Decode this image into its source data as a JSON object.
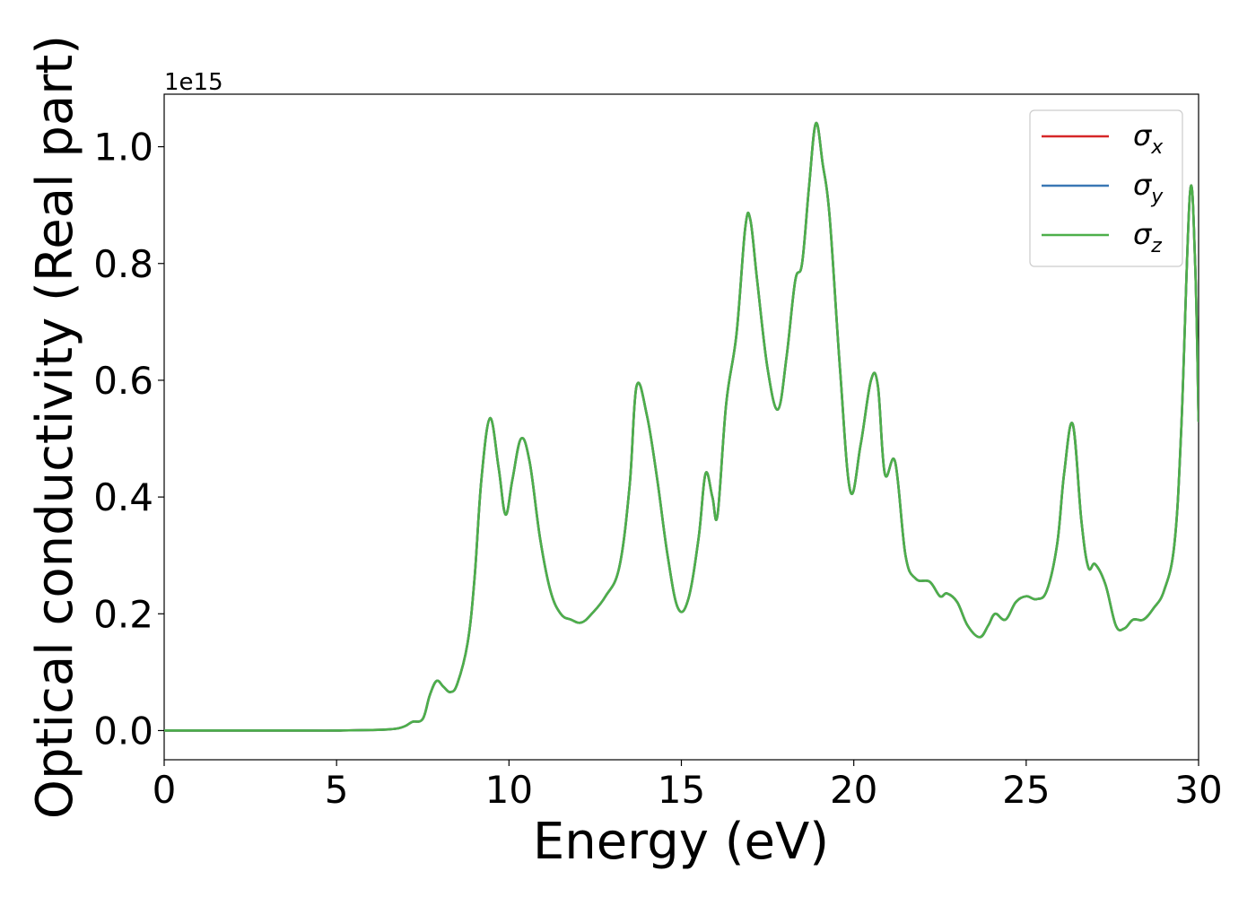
{
  "chart_data": {
    "type": "line",
    "title": "",
    "xlabel": "Energy (eV)",
    "ylabel": "Optical conductivity (Real part)",
    "offset_label": "1e15",
    "xlim": [
      0,
      30
    ],
    "ylim": [
      -0.05,
      1.09
    ],
    "y_scale_factor": 1000000000000000.0,
    "xticks": [
      0,
      5,
      10,
      15,
      20,
      25,
      30
    ],
    "xtick_labels": [
      "0",
      "5",
      "10",
      "15",
      "20",
      "25",
      "30"
    ],
    "yticks": [
      0.0,
      0.2,
      0.4,
      0.6,
      0.8,
      1.0
    ],
    "ytick_labels": [
      "0.0",
      "0.2",
      "0.4",
      "0.6",
      "0.8",
      "1.0"
    ],
    "grid": false,
    "legend_position": "top-right",
    "x": [
      0,
      2,
      4,
      5,
      6,
      6.5,
      6.8,
      7.0,
      7.2,
      7.5,
      7.7,
      7.9,
      8.1,
      8.3,
      8.5,
      8.8,
      9.0,
      9.2,
      9.45,
      9.7,
      9.9,
      10.1,
      10.35,
      10.6,
      10.9,
      11.2,
      11.5,
      11.8,
      12.1,
      12.4,
      12.8,
      13.2,
      13.5,
      13.7,
      14.0,
      14.3,
      14.6,
      14.9,
      15.2,
      15.5,
      15.7,
      15.9,
      16.05,
      16.3,
      16.6,
      16.85,
      17.0,
      17.2,
      17.5,
      17.8,
      18.05,
      18.3,
      18.5,
      18.7,
      18.9,
      19.1,
      19.3,
      19.6,
      19.9,
      20.2,
      20.5,
      20.7,
      20.9,
      21.2,
      21.5,
      21.8,
      22.2,
      22.5,
      22.7,
      23.0,
      23.3,
      23.65,
      23.9,
      24.1,
      24.4,
      24.7,
      25.0,
      25.3,
      25.6,
      25.9,
      26.1,
      26.35,
      26.6,
      26.8,
      27.0,
      27.3,
      27.6,
      27.85,
      28.1,
      28.4,
      28.7,
      29.0,
      29.3,
      29.5,
      29.75,
      29.9,
      30.0
    ],
    "series": [
      {
        "name": "σx",
        "color": "#d62728",
        "values": [
          0.0,
          0.0,
          0.0,
          0.0,
          0.001,
          0.002,
          0.004,
          0.008,
          0.015,
          0.02,
          0.06,
          0.085,
          0.075,
          0.066,
          0.08,
          0.15,
          0.26,
          0.43,
          0.535,
          0.45,
          0.37,
          0.43,
          0.5,
          0.46,
          0.33,
          0.24,
          0.2,
          0.19,
          0.185,
          0.2,
          0.23,
          0.28,
          0.42,
          0.59,
          0.54,
          0.43,
          0.3,
          0.21,
          0.225,
          0.33,
          0.44,
          0.4,
          0.37,
          0.56,
          0.68,
          0.86,
          0.875,
          0.77,
          0.62,
          0.55,
          0.64,
          0.77,
          0.8,
          0.93,
          1.04,
          0.97,
          0.88,
          0.62,
          0.41,
          0.49,
          0.6,
          0.59,
          0.44,
          0.46,
          0.3,
          0.26,
          0.255,
          0.23,
          0.235,
          0.22,
          0.18,
          0.16,
          0.18,
          0.2,
          0.19,
          0.22,
          0.23,
          0.225,
          0.24,
          0.32,
          0.44,
          0.525,
          0.36,
          0.28,
          0.285,
          0.25,
          0.18,
          0.175,
          0.19,
          0.19,
          0.21,
          0.24,
          0.32,
          0.52,
          0.92,
          0.8,
          0.53
        ]
      },
      {
        "name": "σy",
        "color": "#3a78b5",
        "values": [
          0.0,
          0.0,
          0.0,
          0.0,
          0.001,
          0.002,
          0.004,
          0.008,
          0.015,
          0.02,
          0.06,
          0.085,
          0.075,
          0.066,
          0.08,
          0.15,
          0.26,
          0.43,
          0.535,
          0.45,
          0.37,
          0.43,
          0.5,
          0.46,
          0.33,
          0.24,
          0.2,
          0.19,
          0.185,
          0.2,
          0.23,
          0.28,
          0.42,
          0.59,
          0.54,
          0.43,
          0.3,
          0.21,
          0.225,
          0.33,
          0.44,
          0.4,
          0.37,
          0.56,
          0.68,
          0.86,
          0.875,
          0.77,
          0.62,
          0.55,
          0.64,
          0.77,
          0.8,
          0.93,
          1.04,
          0.97,
          0.88,
          0.62,
          0.41,
          0.49,
          0.6,
          0.59,
          0.44,
          0.46,
          0.3,
          0.26,
          0.255,
          0.23,
          0.235,
          0.22,
          0.18,
          0.16,
          0.18,
          0.2,
          0.19,
          0.22,
          0.23,
          0.225,
          0.24,
          0.32,
          0.44,
          0.525,
          0.36,
          0.28,
          0.285,
          0.25,
          0.18,
          0.175,
          0.19,
          0.19,
          0.21,
          0.24,
          0.32,
          0.52,
          0.92,
          0.8,
          0.53
        ]
      },
      {
        "name": "σz",
        "color": "#4daf4a",
        "values": [
          0.0,
          0.0,
          0.0,
          0.0,
          0.001,
          0.002,
          0.004,
          0.008,
          0.015,
          0.02,
          0.06,
          0.085,
          0.075,
          0.066,
          0.08,
          0.15,
          0.26,
          0.43,
          0.535,
          0.45,
          0.37,
          0.43,
          0.5,
          0.46,
          0.33,
          0.24,
          0.2,
          0.19,
          0.185,
          0.2,
          0.23,
          0.28,
          0.42,
          0.59,
          0.54,
          0.43,
          0.3,
          0.21,
          0.225,
          0.33,
          0.44,
          0.4,
          0.37,
          0.56,
          0.68,
          0.86,
          0.875,
          0.77,
          0.62,
          0.55,
          0.64,
          0.77,
          0.8,
          0.93,
          1.04,
          0.97,
          0.88,
          0.62,
          0.41,
          0.49,
          0.6,
          0.59,
          0.44,
          0.46,
          0.3,
          0.26,
          0.255,
          0.23,
          0.235,
          0.22,
          0.18,
          0.16,
          0.18,
          0.2,
          0.19,
          0.22,
          0.23,
          0.225,
          0.24,
          0.32,
          0.44,
          0.525,
          0.36,
          0.28,
          0.285,
          0.25,
          0.18,
          0.175,
          0.19,
          0.19,
          0.21,
          0.24,
          0.32,
          0.52,
          0.92,
          0.8,
          0.53
        ]
      }
    ],
    "legend": [
      {
        "symbol": "σ",
        "sub": "x",
        "color": "#d62728"
      },
      {
        "symbol": "σ",
        "sub": "y",
        "color": "#3a78b5"
      },
      {
        "symbol": "σ",
        "sub": "z",
        "color": "#4daf4a"
      }
    ]
  }
}
